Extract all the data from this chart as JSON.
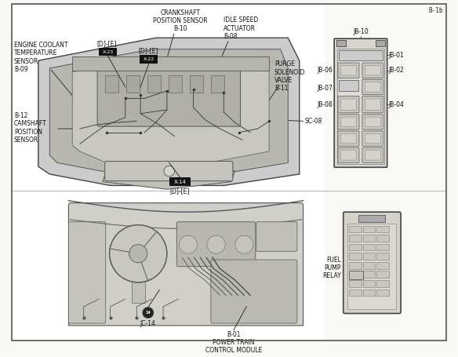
{
  "title": "B-1b",
  "bg_color": "#f0f0eb",
  "border_color": "#333333",
  "page_bg": "#f8f8f5",
  "labels": {
    "crankshaft": "CRANKSHAFT\nPOSITION SENSOR\nB-10",
    "idle_speed": "IDLE SPEED\nACTUATOR\nB-08",
    "engine_coolant": "ENGINE COOLANT\nTEMPERATURE\nSENSOR\nB-09",
    "purge_solenoid": "PURGE\nSOLENOID\nVALVE\nB-11",
    "camshaft": "B-12\nCAMSHAFT\nPOSITION\nSENSOR",
    "sc08": "SC-08",
    "x14": "X-14",
    "dihe_x14": "[D]-[E]",
    "b01": "B-01\nPOWER TRAIN\nCONTROL MODULE",
    "jc14": "JC-14",
    "fuel_pump": "FUEL\nPUMP\nRELAY",
    "jb10": "JB-10",
    "jb01": "JB-01",
    "jb02": "JB-02",
    "jb04": "JB-04",
    "jb06": "JB-06",
    "jb07": "JB-07",
    "jb08": "JB-08",
    "x23_label": "[D]-[E]",
    "x23": "X-23",
    "x22_label": "[D]-[E]",
    "x22": "X-22"
  }
}
